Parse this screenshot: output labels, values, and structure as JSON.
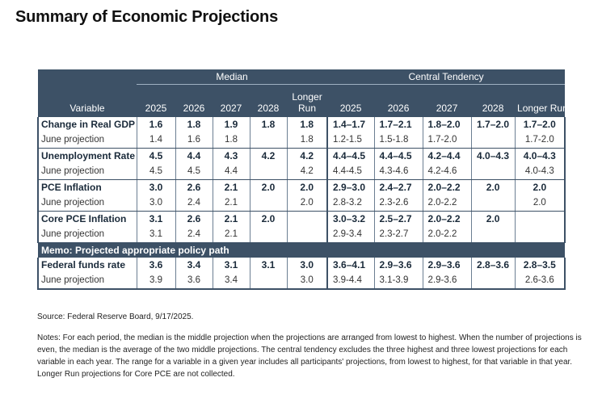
{
  "title": "Summary of Economic Projections",
  "table": {
    "group_median": "Median",
    "group_central": "Central Tendency",
    "variable_header": "Variable",
    "median_years": [
      "2025",
      "2026",
      "2027",
      "2028",
      "Longer Run"
    ],
    "central_years": [
      "2025",
      "2026",
      "2027",
      "2028",
      "Longer Run"
    ],
    "rows": [
      {
        "label": "Change in Real GDP",
        "median": [
          "1.6",
          "1.8",
          "1.9",
          "1.8",
          "1.8"
        ],
        "central": [
          "1.4–1.7",
          "1.7–2.1",
          "1.8–2.0",
          "1.7–2.0",
          "1.7–2.0"
        ],
        "june_label": "June projection",
        "june_median": [
          "1.4",
          "1.6",
          "1.8",
          "",
          "1.8"
        ],
        "june_central": [
          "1.2-1.5",
          "1.5-1.8",
          "1.7-2.0",
          "",
          "1.7-2.0"
        ]
      },
      {
        "label": "Unemployment Rate",
        "median": [
          "4.5",
          "4.4",
          "4.3",
          "4.2",
          "4.2"
        ],
        "central": [
          "4.4–4.5",
          "4.4–4.5",
          "4.2–4.4",
          "4.0–4.3",
          "4.0–4.3"
        ],
        "june_label": "June projection",
        "june_median": [
          "4.5",
          "4.5",
          "4.4",
          "",
          "4.2"
        ],
        "june_central": [
          "4.4-4.5",
          "4.3-4.6",
          "4.2-4.6",
          "",
          "4.0-4.3"
        ]
      },
      {
        "label": "PCE Inflation",
        "median": [
          "3.0",
          "2.6",
          "2.1",
          "2.0",
          "2.0"
        ],
        "central": [
          "2.9–3.0",
          "2.4–2.7",
          "2.0–2.2",
          "2.0",
          "2.0"
        ],
        "june_label": "June projection",
        "june_median": [
          "3.0",
          "2.4",
          "2.1",
          "",
          "2.0"
        ],
        "june_central": [
          "2.8-3.2",
          "2.3-2.6",
          "2.0-2.2",
          "",
          "2.0"
        ]
      },
      {
        "label": "Core PCE Inflation",
        "median": [
          "3.1",
          "2.6",
          "2.1",
          "2.0",
          ""
        ],
        "central": [
          "3.0–3.2",
          "2.5–2.7",
          "2.0–2.2",
          "2.0",
          ""
        ],
        "june_label": "June projection",
        "june_median": [
          "3.1",
          "2.4",
          "2.1",
          "",
          ""
        ],
        "june_central": [
          "2.9-3.4",
          "2.3-2.7",
          "2.0-2.2",
          "",
          ""
        ]
      }
    ],
    "memo": "Memo: Projected appropriate policy path",
    "policy": {
      "label": "Federal funds rate",
      "median": [
        "3.6",
        "3.4",
        "3.1",
        "3.1",
        "3.0"
      ],
      "central": [
        "3.6–4.1",
        "2.9–3.6",
        "2.9–3.6",
        "2.8–3.6",
        "2.8–3.5"
      ],
      "june_label": "June projection",
      "june_median": [
        "3.9",
        "3.6",
        "3.4",
        "",
        "3.0"
      ],
      "june_central": [
        "3.9-4.4",
        "3.1-3.9",
        "2.9-3.6",
        "",
        "2.6-3.6"
      ]
    }
  },
  "source": "Source: Federal Reserve Board, 9/17/2025.",
  "notes": "Notes: For each period, the median is the middle projection when the projections are arranged from lowest to highest. When the number of projections is even, the median is the average of the two middle projections. The central tendency excludes the three highest and three lowest projections for each variable in each year. The range for a variable in a given year includes all participants' projections, from lowest to highest, for that variable in that year. Longer Run projections for Core PCE are not collected."
}
